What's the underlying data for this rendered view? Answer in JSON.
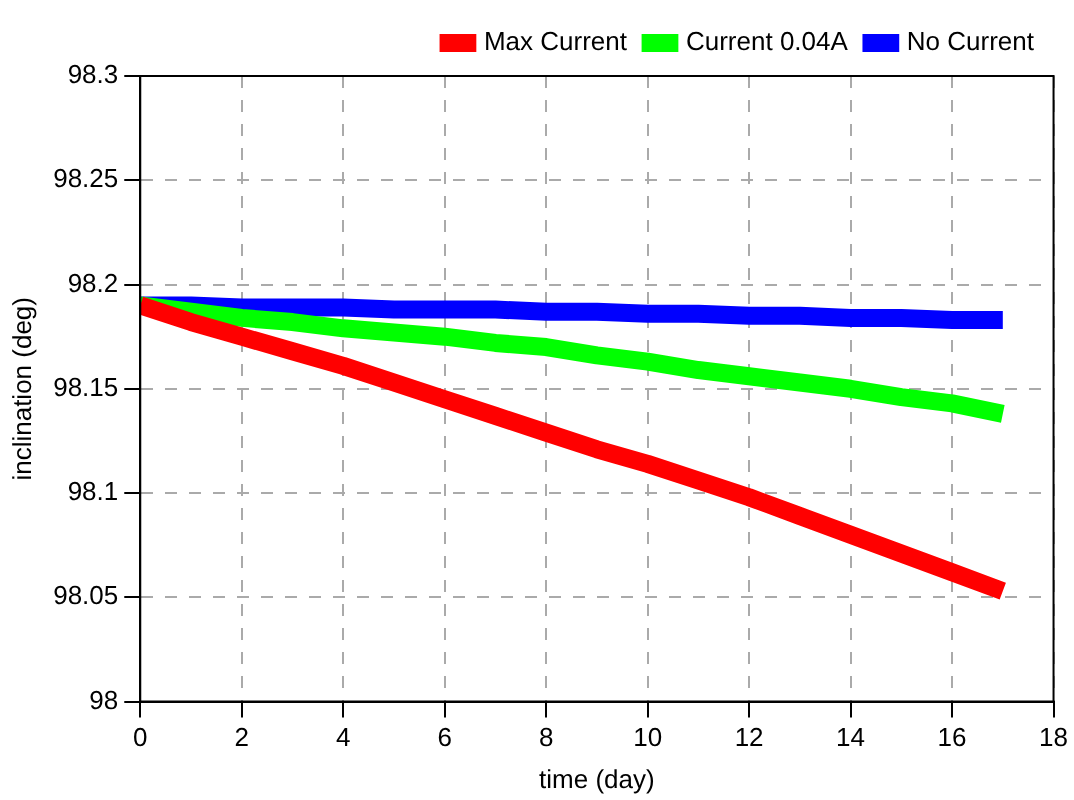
{
  "chart_data": {
    "type": "line",
    "xlabel": "time (day)",
    "ylabel": "inclination (deg)",
    "x": [
      0,
      1,
      2,
      3,
      4,
      5,
      6,
      7,
      8,
      9,
      10,
      11,
      12,
      13,
      14,
      15,
      16,
      17
    ],
    "series": [
      {
        "name": "Max Current",
        "color": "#ff0000",
        "values": [
          98.19,
          98.182,
          98.175,
          98.168,
          98.161,
          98.153,
          98.145,
          98.137,
          98.129,
          98.121,
          98.114,
          98.106,
          98.098,
          98.089,
          98.08,
          98.071,
          98.062,
          98.053
        ]
      },
      {
        "name": "Current 0.04A",
        "color": "#00ff00",
        "values": [
          98.19,
          98.187,
          98.184,
          98.182,
          98.179,
          98.177,
          98.175,
          98.172,
          98.17,
          98.166,
          98.163,
          98.159,
          98.156,
          98.153,
          98.15,
          98.146,
          98.143,
          98.138
        ]
      },
      {
        "name": "No Current",
        "color": "#0000ff",
        "values": [
          98.19,
          98.19,
          98.189,
          98.189,
          98.189,
          98.188,
          98.188,
          98.188,
          98.187,
          98.187,
          98.186,
          98.186,
          98.185,
          98.185,
          98.184,
          98.184,
          98.183,
          98.183
        ]
      }
    ],
    "xlim": [
      0,
      18
    ],
    "xticks": [
      0,
      2,
      4,
      6,
      8,
      10,
      12,
      14,
      16,
      18
    ],
    "ylim": [
      98,
      98.3
    ],
    "yticks": [
      98,
      98.05,
      98.1,
      98.15,
      98.2,
      98.25,
      98.3
    ],
    "grid": true,
    "legend": "top right",
    "marker": "none",
    "line_style": "solid"
  }
}
